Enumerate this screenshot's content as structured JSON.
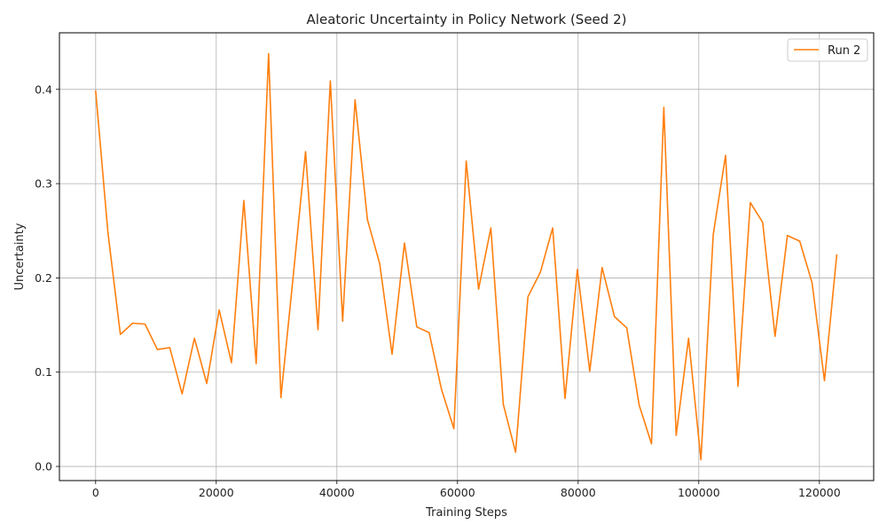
{
  "chart_data": {
    "type": "line",
    "title": "Aleatoric Uncertainty in Policy Network (Seed 2)",
    "xlabel": "Training Steps",
    "ylabel": "Uncertainty",
    "xlim": [
      -6000,
      129000
    ],
    "ylim": [
      -0.015,
      0.46
    ],
    "xticks": [
      0,
      20000,
      40000,
      60000,
      80000,
      100000,
      120000
    ],
    "xtick_labels": [
      "0",
      "20000",
      "40000",
      "60000",
      "80000",
      "100000",
      "120000"
    ],
    "yticks": [
      0.0,
      0.1,
      0.2,
      0.3,
      0.4
    ],
    "ytick_labels": [
      "0.0",
      "0.1",
      "0.2",
      "0.3",
      "0.4"
    ],
    "grid": true,
    "legend": "top-right",
    "series": [
      {
        "name": "Run 2",
        "color": "#ff7f0e",
        "x": [
          0,
          2048,
          4096,
          6144,
          8192,
          10240,
          12288,
          14336,
          16384,
          18432,
          20480,
          22528,
          24576,
          26624,
          28672,
          30720,
          32768,
          34816,
          36864,
          38912,
          40960,
          43008,
          45056,
          47104,
          49152,
          51200,
          53248,
          55296,
          57344,
          59392,
          61440,
          63488,
          65536,
          67584,
          69632,
          71680,
          73728,
          75776,
          77824,
          79872,
          81920,
          83968,
          86016,
          88064,
          90112,
          92160,
          94208,
          96256,
          98304,
          100352,
          102400,
          104448,
          106496,
          108544,
          110592,
          112640,
          114688,
          116736,
          118784,
          120832,
          122880
        ],
        "values": [
          0.399,
          0.248,
          0.14,
          0.152,
          0.151,
          0.124,
          0.126,
          0.077,
          0.136,
          0.088,
          0.166,
          0.11,
          0.282,
          0.109,
          0.438,
          0.073,
          0.202,
          0.334,
          0.145,
          0.409,
          0.154,
          0.389,
          0.262,
          0.215,
          0.119,
          0.237,
          0.148,
          0.142,
          0.082,
          0.04,
          0.324,
          0.188,
          0.253,
          0.066,
          0.015,
          0.18,
          0.206,
          0.253,
          0.072,
          0.209,
          0.101,
          0.211,
          0.159,
          0.147,
          0.065,
          0.024,
          0.381,
          0.033,
          0.136,
          0.007,
          0.246,
          0.33,
          0.085,
          0.28,
          0.259,
          0.138,
          0.245,
          0.239,
          0.195,
          0.091,
          0.225
        ]
      }
    ]
  }
}
